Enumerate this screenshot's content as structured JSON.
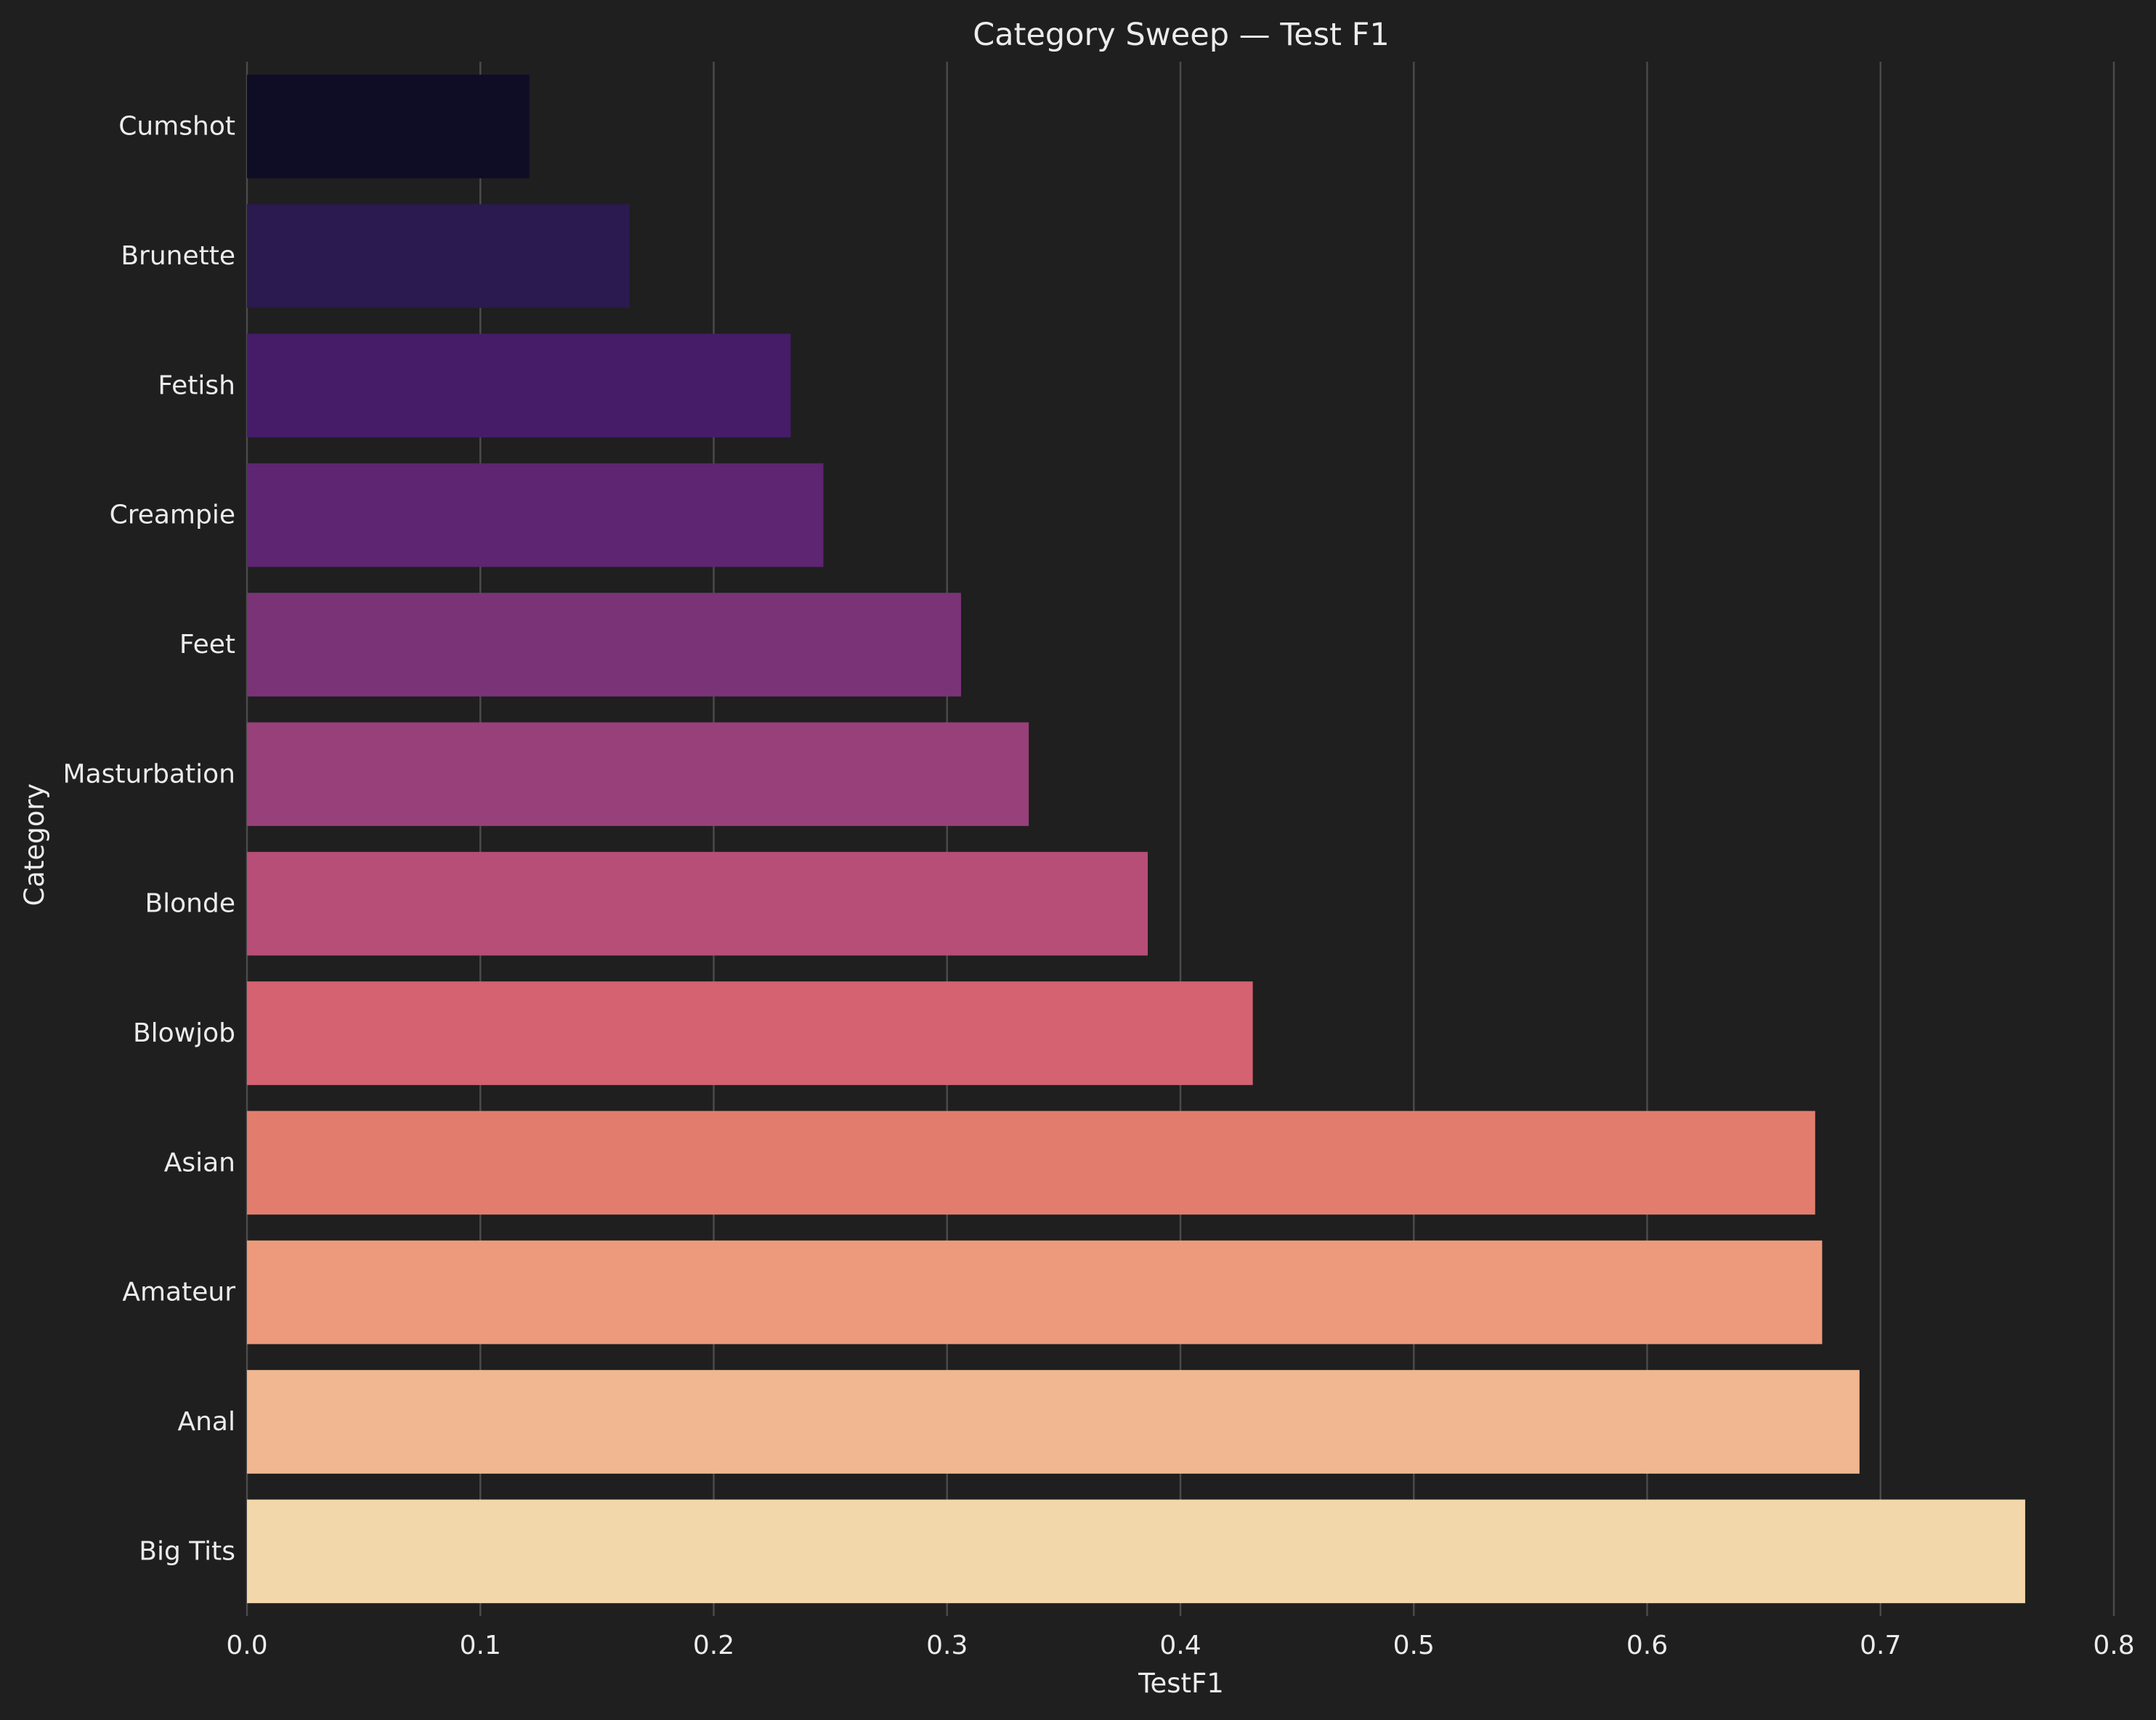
{
  "chart_data": {
    "type": "bar",
    "orientation": "horizontal",
    "title": "Category Sweep — Test F1",
    "xlabel": "TestF1",
    "ylabel": "Category",
    "xlim": [
      0.0,
      0.8
    ],
    "xticks": [
      "0.0",
      "0.1",
      "0.2",
      "0.3",
      "0.4",
      "0.5",
      "0.6",
      "0.7",
      "0.8"
    ],
    "grid": "vertical",
    "legend": "none",
    "palette": "magma",
    "categories": [
      "Cumshot",
      "Brunette",
      "Fetish",
      "Creampie",
      "Feet",
      "Masturbation",
      "Blonde",
      "Blowjob",
      "Asian",
      "Amateur",
      "Anal",
      "Big Tits"
    ],
    "values": [
      0.121,
      0.164,
      0.233,
      0.247,
      0.306,
      0.335,
      0.386,
      0.431,
      0.672,
      0.675,
      0.691,
      0.762
    ],
    "colors": [
      "#0f0c26",
      "#2a1a4f",
      "#461c69",
      "#5e2572",
      "#7a3377",
      "#98407a",
      "#b64e78",
      "#d46270",
      "#e27d6e",
      "#ec9a7b",
      "#f0b790",
      "#f1d7aa"
    ],
    "background_color": "#1f1f1f",
    "text_color": "#ececec",
    "grid_color": "#4a4a4a"
  }
}
